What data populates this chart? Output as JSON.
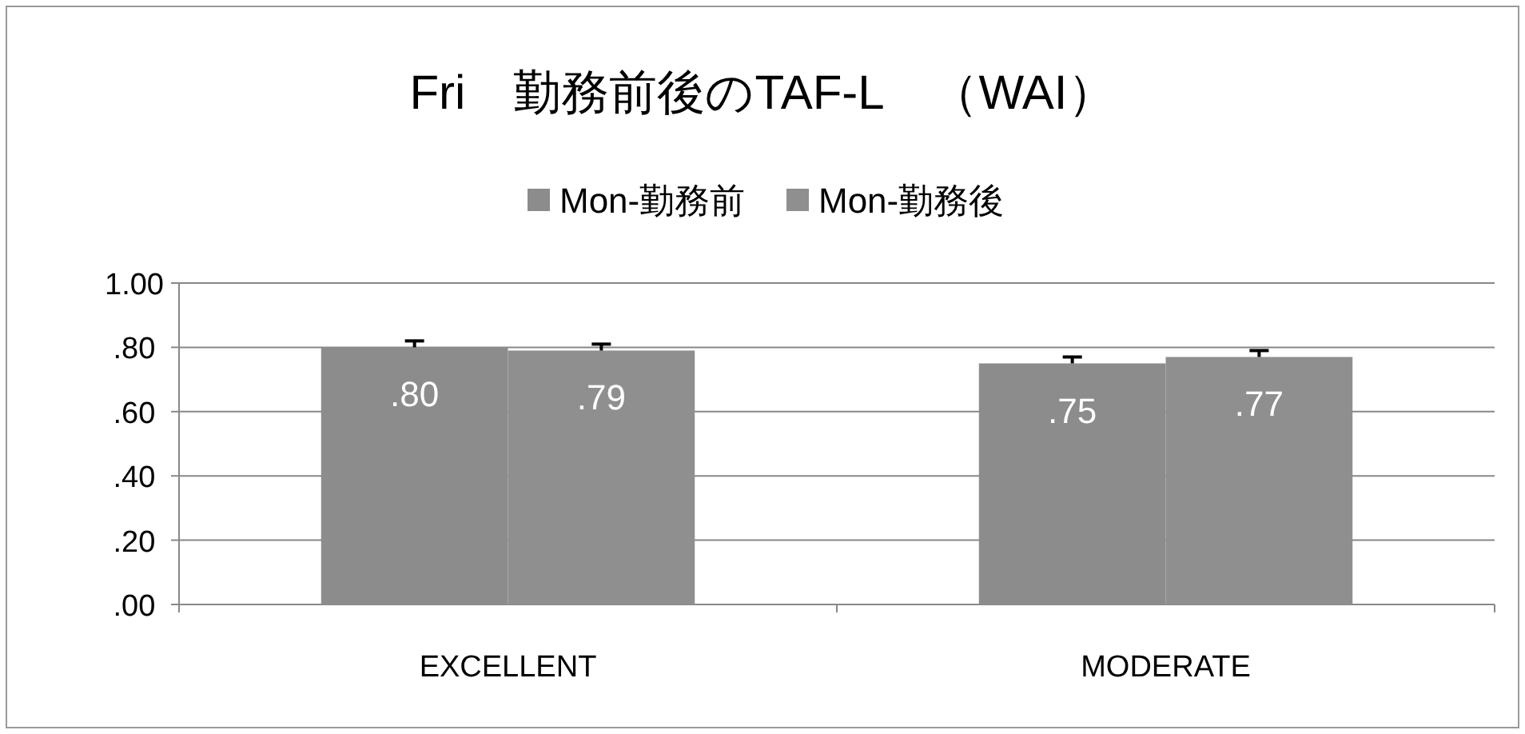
{
  "chart_data": {
    "type": "bar",
    "title": "Fri　勤務前後のTAF-L　（WAI）",
    "categories": [
      "EXCELLENT",
      "MODERATE"
    ],
    "series": [
      {
        "name": "Mon-勤務前",
        "color": "#8c8c8c",
        "values": [
          0.8,
          0.75
        ],
        "errors": [
          [
            0.8,
            0.82
          ],
          [
            0.75,
            0.77
          ]
        ],
        "value_labels": [
          ".80",
          ".75"
        ]
      },
      {
        "name": "Mon-勤務後",
        "color": "#8f8f8f",
        "values": [
          0.79,
          0.77
        ],
        "errors": [
          [
            0.79,
            0.81
          ],
          [
            0.77,
            0.79
          ]
        ],
        "value_labels": [
          ".79",
          ".77"
        ]
      }
    ],
    "ylim": [
      0,
      1
    ],
    "yticks": [
      {
        "value": 0,
        "label": ".00"
      },
      {
        "value": 0.2,
        "label": ".20"
      },
      {
        "value": 0.4,
        "label": ".40"
      },
      {
        "value": 0.6,
        "label": ".60"
      },
      {
        "value": 0.8,
        "label": ".80"
      },
      {
        "value": 1,
        "label": "1.00"
      }
    ],
    "grid": "y",
    "legend": "top"
  }
}
